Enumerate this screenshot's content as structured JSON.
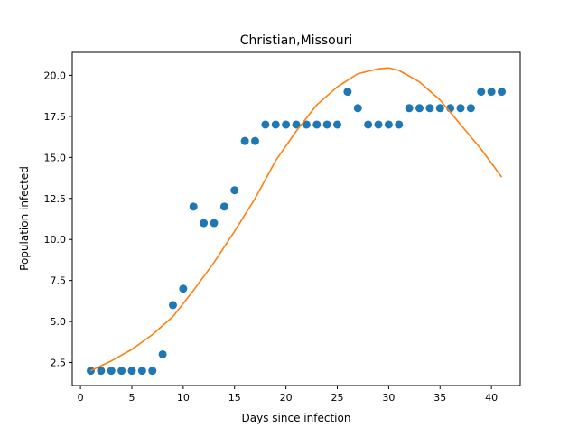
{
  "chart_data": {
    "type": "scatter",
    "title": "Christian,Missouri",
    "xlabel": "Days since infection",
    "ylabel": "Population infected",
    "xlim": [
      -0.8,
      42.8
    ],
    "ylim": [
      1.1,
      21.4
    ],
    "xticks": [
      0,
      5,
      10,
      15,
      20,
      25,
      30,
      35,
      40
    ],
    "yticks": [
      2.5,
      5.0,
      7.5,
      10.0,
      12.5,
      15.0,
      17.5,
      20.0
    ],
    "xtick_labels": [
      "0",
      "5",
      "10",
      "15",
      "20",
      "25",
      "30",
      "35",
      "40"
    ],
    "ytick_labels": [
      "2.5",
      "5.0",
      "7.5",
      "10.0",
      "12.5",
      "15.0",
      "17.5",
      "20.0"
    ],
    "grid": false,
    "legend": "none",
    "series": [
      {
        "type": "scatter",
        "color": "#1f77b4",
        "x": [
          1,
          2,
          3,
          4,
          5,
          6,
          7,
          8,
          9,
          10,
          11,
          12,
          13,
          14,
          15,
          16,
          17,
          18,
          19,
          20,
          21,
          22,
          23,
          24,
          25,
          26,
          27,
          28,
          29,
          30,
          31,
          32,
          33,
          34,
          35,
          36,
          37,
          38,
          39,
          40,
          41
        ],
        "y": [
          2,
          2,
          2,
          2,
          2,
          2,
          2,
          3,
          6,
          7,
          12,
          11,
          11,
          12,
          13,
          16,
          16,
          17,
          17,
          17,
          17,
          17,
          17,
          17,
          17,
          19,
          18,
          17,
          17,
          17,
          17,
          18,
          18,
          18,
          18,
          18,
          18,
          18,
          19,
          19,
          19
        ]
      },
      {
        "type": "line",
        "color": "#ff7f0e",
        "x": [
          1,
          3,
          5,
          7,
          9,
          11,
          13,
          15,
          17,
          19,
          21,
          23,
          25,
          27,
          29,
          30,
          31,
          33,
          35,
          37,
          39,
          41
        ],
        "y": [
          2.0,
          2.6,
          3.3,
          4.2,
          5.3,
          6.9,
          8.6,
          10.5,
          12.5,
          14.8,
          16.6,
          18.2,
          19.3,
          20.1,
          20.4,
          20.45,
          20.3,
          19.6,
          18.5,
          17.0,
          15.5,
          13.8
        ]
      }
    ]
  }
}
